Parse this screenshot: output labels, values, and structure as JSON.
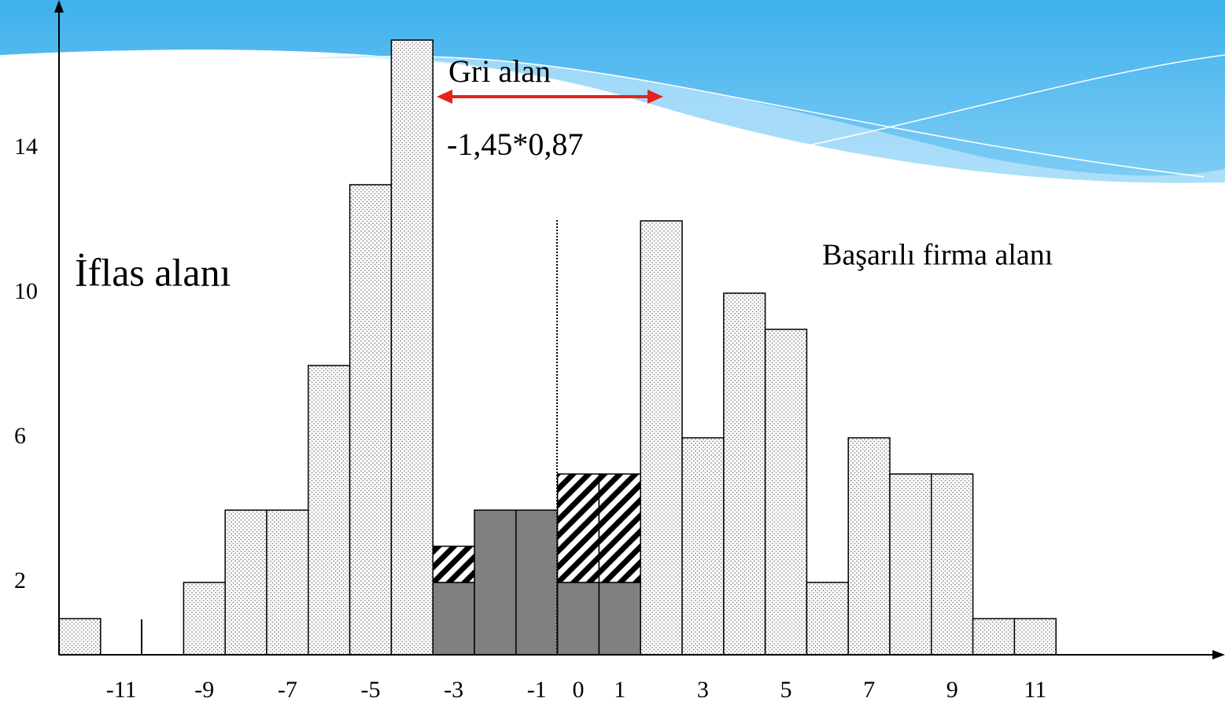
{
  "chart_data": {
    "type": "histogram",
    "bins": [
      -12.5,
      -11.5,
      -10.5,
      -9.5,
      -8.5,
      -7.5,
      -6.5,
      -5.5,
      -4.5,
      -3.5,
      -2.5,
      -1.5,
      -0.5,
      0.5,
      1.5,
      2.5,
      3.5,
      4.5,
      5.5,
      6.5,
      7.5,
      8.5,
      9.5,
      10.5,
      11.5
    ],
    "series": [
      {
        "color": "#808080",
        "fill": "solid",
        "values": [
          0,
          0,
          0,
          0,
          0,
          0,
          0,
          0,
          0,
          2,
          4,
          4,
          2,
          2,
          0,
          0,
          0,
          0,
          0,
          0,
          0,
          0,
          0,
          0
        ]
      },
      {
        "color": "#000000",
        "fill": "hatch",
        "values": [
          0,
          0,
          0,
          0,
          0,
          0,
          0,
          0,
          0,
          1,
          0,
          0,
          3,
          3,
          0,
          0,
          0,
          0,
          0,
          0,
          0,
          0,
          0,
          0
        ]
      },
      {
        "color": "#9a9a9a",
        "fill": "dots",
        "values": [
          1,
          0,
          0,
          2,
          4,
          4,
          8,
          13,
          17,
          0,
          0,
          0,
          0,
          0,
          12,
          6,
          10,
          9,
          2,
          6,
          5,
          5,
          1,
          1
        ]
      }
    ],
    "xlim": [
      -12.5,
      17.5
    ],
    "xticks": [
      -11,
      -9,
      -7,
      -5,
      -3,
      -1,
      0,
      1,
      3,
      5,
      7,
      9,
      11
    ],
    "ylim": [
      0,
      18
    ],
    "yticks": [
      2,
      6,
      10,
      14
    ],
    "annotations": {
      "gray_zone": "Gri alan",
      "formula": "-1,45*0,87",
      "bankrupt_zone": "İflas alanı",
      "successful_zone": "Başarılı firma alanı"
    }
  }
}
